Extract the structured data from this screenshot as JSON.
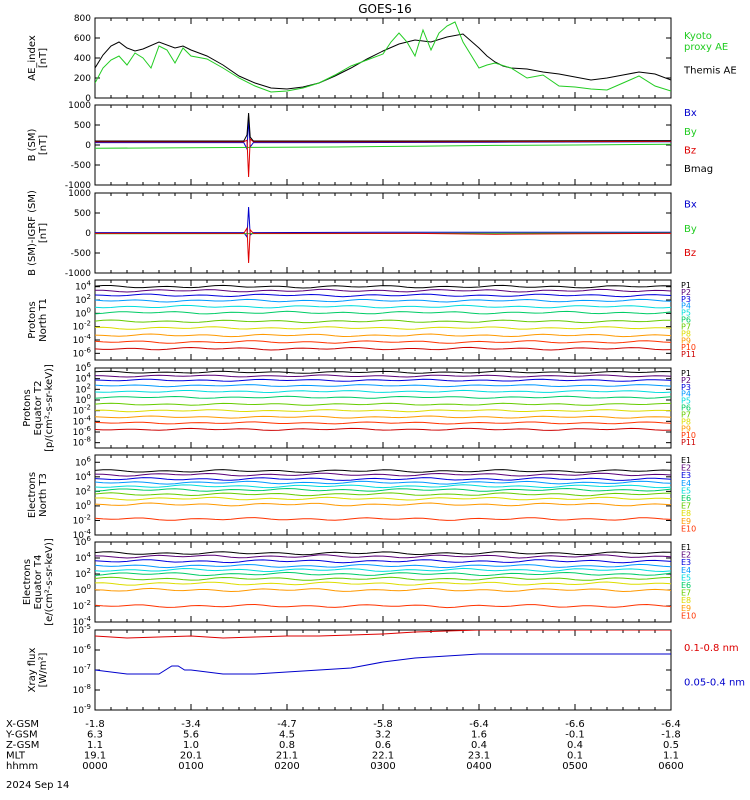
{
  "title": "GOES-16",
  "date_label": "2024 Sep 14",
  "colors": {
    "black": "#000000",
    "blue": "#0000cc",
    "green": "#22cc22",
    "red": "#dd0000",
    "ae_green": "#22dd22",
    "channels": [
      "#000000",
      "#5a0078",
      "#0000dd",
      "#0099ff",
      "#00dddd",
      "#00cc66",
      "#66cc00",
      "#dddd00",
      "#ff9900",
      "#ff3300",
      "#cc0000"
    ]
  },
  "chart_data": [
    {
      "type": "line",
      "panel": "ae",
      "ylabel": "AE_index\n[nT]",
      "ylim": [
        0,
        800
      ],
      "yticks": [
        "0",
        "200",
        "400",
        "600",
        "800"
      ],
      "legend": [
        {
          "label": "Kyoto\nproxy AE",
          "color": "green"
        },
        {
          "label": "Themis AE",
          "color": "black"
        }
      ],
      "series": [
        {
          "name": "Themis AE",
          "color": "black",
          "x": [
            0,
            5,
            10,
            15,
            20,
            25,
            30,
            40,
            50,
            55,
            60,
            70,
            80,
            90,
            100,
            110,
            120,
            130,
            140,
            150,
            160,
            170,
            180,
            190,
            200,
            210,
            220,
            230,
            240,
            245,
            250,
            255,
            260,
            270,
            280,
            290,
            300,
            310,
            320,
            330,
            340,
            350,
            360
          ],
          "y": [
            300,
            430,
            520,
            560,
            500,
            470,
            490,
            560,
            500,
            520,
            480,
            420,
            330,
            220,
            150,
            100,
            90,
            110,
            150,
            220,
            300,
            390,
            470,
            540,
            580,
            560,
            610,
            640,
            500,
            420,
            360,
            320,
            300,
            290,
            260,
            240,
            210,
            180,
            200,
            230,
            260,
            240,
            180
          ]
        },
        {
          "name": "Kyoto proxy AE",
          "color": "green",
          "x": [
            0,
            5,
            10,
            15,
            20,
            25,
            30,
            35,
            40,
            45,
            50,
            55,
            60,
            70,
            80,
            90,
            100,
            110,
            120,
            130,
            140,
            150,
            160,
            170,
            180,
            185,
            190,
            195,
            200,
            205,
            210,
            215,
            220,
            225,
            230,
            235,
            240,
            245,
            250,
            260,
            270,
            280,
            290,
            300,
            310,
            320,
            330,
            340,
            350,
            360
          ],
          "y": [
            150,
            300,
            380,
            420,
            330,
            450,
            400,
            300,
            520,
            480,
            350,
            500,
            420,
            390,
            300,
            200,
            120,
            60,
            70,
            100,
            150,
            230,
            320,
            380,
            440,
            560,
            650,
            560,
            420,
            680,
            480,
            650,
            720,
            760,
            560,
            430,
            300,
            330,
            350,
            300,
            200,
            230,
            120,
            110,
            90,
            80,
            150,
            220,
            120,
            70
          ]
        }
      ]
    },
    {
      "type": "line",
      "panel": "bsm",
      "ylabel": "B (SM)\n[nT]",
      "ylim": [
        -1000,
        1000
      ],
      "yticks": [
        "-1000",
        "-500",
        "0",
        "500",
        "1000"
      ],
      "legend": [
        {
          "label": "Bx",
          "color": "blue"
        },
        {
          "label": "By",
          "color": "green"
        },
        {
          "label": "Bz",
          "color": "red"
        },
        {
          "label": "Bmag",
          "color": "black"
        }
      ],
      "series": [
        {
          "name": "Bx",
          "color": "blue",
          "x": [
            0,
            93,
            95,
            96,
            97,
            99,
            150,
            250,
            360
          ],
          "y": [
            60,
            60,
            -100,
            650,
            -50,
            60,
            60,
            70,
            80
          ]
        },
        {
          "name": "By",
          "color": "green",
          "x": [
            0,
            60,
            100,
            150,
            200,
            250,
            300,
            360
          ],
          "y": [
            -80,
            -70,
            -60,
            -50,
            -30,
            -10,
            0,
            20
          ]
        },
        {
          "name": "Bz",
          "color": "red",
          "x": [
            0,
            93,
            95,
            96,
            97,
            99,
            200,
            360
          ],
          "y": [
            80,
            80,
            120,
            -800,
            150,
            80,
            80,
            90
          ]
        },
        {
          "name": "Bmag",
          "color": "black",
          "x": [
            0,
            93,
            95,
            96,
            97,
            99,
            200,
            360
          ],
          "y": [
            100,
            100,
            250,
            800,
            200,
            100,
            100,
            110
          ]
        }
      ]
    },
    {
      "type": "line",
      "panel": "bdiff",
      "ylabel": "B (SM)-IGRF (SM)\n[nT]",
      "ylim": [
        -1000,
        1000
      ],
      "yticks": [
        "-1000",
        "-500",
        "0",
        "500",
        "1000"
      ],
      "legend": [
        {
          "label": "Bx",
          "color": "blue"
        },
        {
          "label": "By",
          "color": "green"
        },
        {
          "label": "Bz",
          "color": "red"
        }
      ],
      "series": [
        {
          "name": "Bx",
          "color": "blue",
          "x": [
            0,
            93,
            95,
            96,
            97,
            99,
            200,
            360
          ],
          "y": [
            10,
            10,
            -100,
            650,
            -50,
            10,
            20,
            20
          ]
        },
        {
          "name": "By",
          "color": "green",
          "x": [
            0,
            100,
            200,
            300,
            360
          ],
          "y": [
            -20,
            -15,
            -10,
            -5,
            0
          ]
        },
        {
          "name": "Bz",
          "color": "red",
          "x": [
            0,
            93,
            95,
            96,
            97,
            99,
            200,
            250,
            300,
            360
          ],
          "y": [
            -10,
            -10,
            120,
            -750,
            80,
            -10,
            -10,
            -30,
            -20,
            -10
          ]
        }
      ]
    },
    {
      "type": "line",
      "panel": "protons-north",
      "log": true,
      "ylabel": "Protons\nNorth T1",
      "ylim": [
        -7,
        5
      ],
      "yticks": [
        "10^4",
        "10^2",
        "10^0",
        "10^-2",
        "10^-4",
        "10^-6"
      ],
      "channel_labels": [
        "P1",
        "P2",
        "P3",
        "P4",
        "P5",
        "P6",
        "P7",
        "P8",
        "P9",
        "P10",
        "P11"
      ],
      "levels": [
        4.0,
        3.4,
        2.7,
        1.9,
        1.0,
        0.1,
        -1.2,
        -2.2,
        -3.3,
        -4.3,
        -5.3
      ]
    },
    {
      "type": "line",
      "panel": "protons-equator",
      "log": true,
      "ylabel": "Protons\nEquator T2\n[p/(cm²-s-sr-keV)]",
      "ylim": [
        -9,
        6
      ],
      "yticks": [
        "10^6",
        "10^4",
        "10^2",
        "10^0",
        "10^-2",
        "10^-4",
        "10^-6",
        "10^-8"
      ],
      "channel_labels": [
        "P1",
        "P2",
        "P3",
        "P4",
        "P5",
        "P6",
        "P7",
        "P8",
        "P9",
        "P10",
        "P11"
      ],
      "levels": [
        5.2,
        4.5,
        3.7,
        2.7,
        1.6,
        0.5,
        -0.8,
        -2.0,
        -3.2,
        -4.3,
        -5.5
      ]
    },
    {
      "type": "line",
      "panel": "electrons-north",
      "log": true,
      "ylabel": "Electrons\nNorth T3",
      "ylim": [
        -4,
        7
      ],
      "yticks": [
        "10^6",
        "10^4",
        "10^2",
        "10^0",
        "10^-2",
        "10^-4"
      ],
      "channel_labels": [
        "E1",
        "E2",
        "E3",
        "E4",
        "E5",
        "E6",
        "E7",
        "E8",
        "E9",
        "E10"
      ],
      "levels": [
        4.8,
        4.3,
        3.7,
        3.2,
        2.7,
        2.2,
        1.6,
        1.0,
        0.2,
        -1.8
      ]
    },
    {
      "type": "line",
      "panel": "electrons-equator",
      "log": true,
      "ylabel": "Electrons\nEquator T4\n[e/(cm²-s-sr-keV)]",
      "ylim": [
        -4,
        6
      ],
      "yticks": [
        "10^6",
        "10^4",
        "10^2",
        "10^0",
        "10^-2",
        "10^-4"
      ],
      "channel_labels": [
        "E1",
        "E2",
        "E3",
        "E4",
        "E5",
        "E6",
        "E7",
        "E8",
        "E9",
        "E10"
      ],
      "levels": [
        4.6,
        4.2,
        3.6,
        3.0,
        2.5,
        2.0,
        1.4,
        0.8,
        0.0,
        -2.0
      ]
    },
    {
      "type": "line",
      "panel": "xray",
      "log": true,
      "ylabel": "Xray flux\n[W/m²]",
      "ylim": [
        -9,
        -5
      ],
      "yticks": [
        "10^-5",
        "10^-6",
        "10^-7",
        "10^-8",
        "10^-9"
      ],
      "legend": [
        {
          "label": "0.1-0.8 nm",
          "color": "red"
        },
        {
          "label": "0.05-0.4 nm",
          "color": "blue"
        }
      ],
      "series": [
        {
          "name": "0.1-0.8 nm",
          "color": "red",
          "x": [
            0,
            20,
            40,
            60,
            80,
            100,
            120,
            140,
            160,
            180,
            200,
            220,
            240,
            248,
            252,
            256,
            260,
            264,
            268,
            272,
            276,
            280,
            285,
            290,
            295,
            300,
            305,
            310,
            330,
            360
          ],
          "y": [
            -5.3,
            -5.4,
            -5.35,
            -5.3,
            -5.4,
            -5.35,
            -5.3,
            -5.3,
            -5.25,
            -5.2,
            -5.1,
            -5.05,
            -5.0,
            -5.0,
            -5.0,
            -5.0,
            -5.0,
            -5.0,
            -5.0,
            -5.0,
            -5.0,
            -5.0,
            -5.0,
            -5.0,
            -5.0,
            -5.0,
            -5.0,
            -5.0,
            -5.0,
            -5.0
          ]
        },
        {
          "name": "0.05-0.4 nm",
          "color": "blue",
          "x": [
            0,
            20,
            40,
            48,
            52,
            56,
            60,
            80,
            100,
            120,
            140,
            160,
            180,
            200,
            220,
            240,
            250,
            255,
            258,
            262,
            266,
            270,
            300,
            310,
            315,
            320,
            330,
            340,
            350,
            360
          ],
          "y": [
            -7.0,
            -7.2,
            -7.2,
            -6.8,
            -6.8,
            -7.0,
            -7.0,
            -7.2,
            -7.2,
            -7.1,
            -7.0,
            -6.9,
            -6.6,
            -6.4,
            -6.3,
            -6.2,
            -6.2,
            -6.2,
            -6.2,
            -6.2,
            -6.2,
            -6.2,
            -6.2,
            -6.2,
            -6.2,
            -6.2,
            -6.2,
            -6.2,
            -6.2,
            -6.2
          ]
        }
      ]
    }
  ],
  "x_axis": {
    "rows": [
      {
        "label": "X-GSM",
        "values": [
          "-1.8",
          "-3.4",
          "-4.7",
          "-5.8",
          "-6.4",
          "-6.6",
          "-6.4"
        ]
      },
      {
        "label": "Y-GSM",
        "values": [
          "6.3",
          "5.6",
          "4.5",
          "3.2",
          "1.6",
          "-0.1",
          "-1.8"
        ]
      },
      {
        "label": "Z-GSM",
        "values": [
          "1.1",
          "1.0",
          "0.8",
          "0.6",
          "0.4",
          "0.4",
          "0.5"
        ]
      },
      {
        "label": "MLT",
        "values": [
          "19.1",
          "20.1",
          "21.1",
          "22.1",
          "23.1",
          "0.1",
          "1.1"
        ]
      },
      {
        "label": "hhmm",
        "values": [
          "0000",
          "0100",
          "0200",
          "0300",
          "0400",
          "0500",
          "0600"
        ]
      }
    ]
  }
}
